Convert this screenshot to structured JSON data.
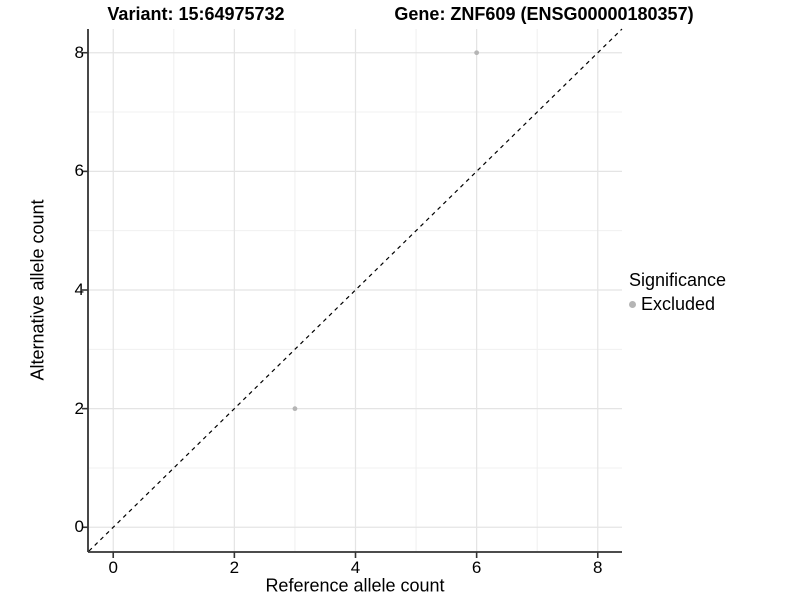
{
  "chart_data": {
    "type": "scatter",
    "title_left": "Variant: 15:64975732",
    "title_right": "Gene: ZNF609 (ENSG00000180357)",
    "xlabel": "Reference allele count",
    "ylabel": "Alternative allele count",
    "xlim": [
      -0.4,
      8.4
    ],
    "ylim": [
      -0.4,
      8.4
    ],
    "x_ticks": [
      0,
      2,
      4,
      6,
      8
    ],
    "y_ticks": [
      0,
      2,
      4,
      6,
      8
    ],
    "x_minor_ticks": [
      1,
      3,
      5,
      7
    ],
    "y_minor_ticks": [
      1,
      3,
      5,
      7
    ],
    "grid": true,
    "legend_position": "right",
    "identity_line": {
      "style": "dashed",
      "from": [
        -0.4,
        -0.4
      ],
      "to": [
        8.4,
        8.4
      ],
      "color": "#000000"
    },
    "series": [
      {
        "name": "Excluded",
        "color": "#b5b5b5",
        "points": [
          {
            "x": 6,
            "y": 8
          },
          {
            "x": 3,
            "y": 2
          }
        ]
      }
    ],
    "legend": {
      "title": "Significance",
      "items": [
        {
          "label": "Excluded",
          "color": "#b5b5b5"
        }
      ]
    }
  },
  "colors": {
    "background": "#ffffff",
    "grid_major": "#e4e4e4",
    "grid_minor": "#f0f0f0",
    "axis_line": "#333333",
    "text": "#000000"
  }
}
